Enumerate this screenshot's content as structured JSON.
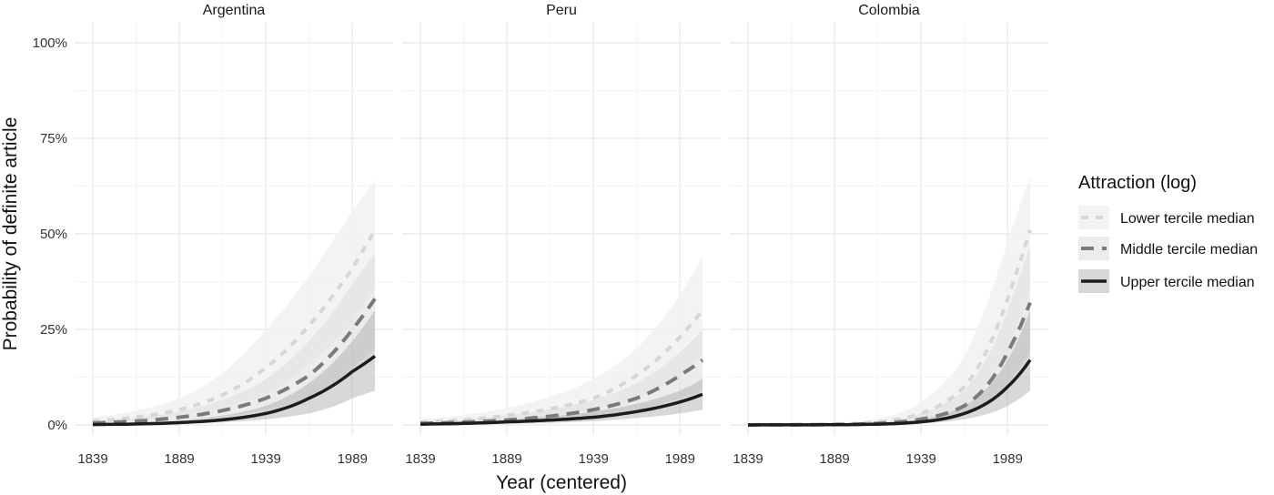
{
  "chart_data": {
    "type": "line",
    "xlabel": "Year (centered)",
    "ylabel": "Probability of definite article",
    "xlim": [
      1839,
      2002
    ],
    "ylim": [
      0,
      1
    ],
    "x_ticks": [
      1839,
      1889,
      1939,
      1989
    ],
    "x_tick_labels": [
      "1839",
      "1889",
      "1939",
      "1989"
    ],
    "y_ticks": [
      0,
      0.25,
      0.5,
      0.75,
      1
    ],
    "y_tick_labels": [
      "0%",
      "25%",
      "50%",
      "75%",
      "100%"
    ],
    "grid": true,
    "legend": {
      "title": "Attraction (log)",
      "position": "right",
      "entries": [
        "Lower tercile median",
        "Middle tercile median",
        "Upper tercile median"
      ]
    },
    "series_styles": [
      {
        "line_color": "#d6d6d6",
        "band_color": "#f2f2f2",
        "band_opacity": 0.9,
        "dash": "8 8",
        "width": 4
      },
      {
        "line_color": "#7a7a7a",
        "band_color": "#dcdcdc",
        "band_opacity": 0.55,
        "dash": "14 9",
        "width": 4
      },
      {
        "line_color": "#1c1c1c",
        "band_color": "#a8a8a8",
        "band_opacity": 0.45,
        "dash": "",
        "width": 3.5
      }
    ],
    "panels": [
      {
        "title": "Argentina",
        "series": [
          {
            "name": "Lower tercile median",
            "x": [
              1839,
              1889,
              1939,
              1964,
              1989,
              2002
            ],
            "y": [
              0.01,
              0.04,
              0.15,
              0.26,
              0.41,
              0.51
            ],
            "lower": [
              0.005,
              0.025,
              0.08,
              0.16,
              0.27,
              0.36
            ],
            "upper": [
              0.02,
              0.07,
              0.25,
              0.39,
              0.56,
              0.64
            ]
          },
          {
            "name": "Middle tercile median",
            "x": [
              1839,
              1889,
              1939,
              1964,
              1989,
              2002
            ],
            "y": [
              0.005,
              0.02,
              0.07,
              0.13,
              0.25,
              0.33
            ],
            "lower": [
              0.002,
              0.012,
              0.04,
              0.07,
              0.15,
              0.2
            ],
            "upper": [
              0.01,
              0.035,
              0.12,
              0.22,
              0.37,
              0.45
            ]
          },
          {
            "name": "Upper tercile median",
            "x": [
              1839,
              1889,
              1939,
              1964,
              1989,
              2002
            ],
            "y": [
              0.001,
              0.006,
              0.03,
              0.07,
              0.14,
              0.18
            ],
            "lower": [
              0,
              0.003,
              0.015,
              0.03,
              0.07,
              0.09
            ],
            "upper": [
              0.003,
              0.012,
              0.05,
              0.11,
              0.22,
              0.3
            ]
          }
        ]
      },
      {
        "title": "Peru",
        "series": [
          {
            "name": "Lower tercile median",
            "x": [
              1839,
              1889,
              1939,
              1964,
              1989,
              2002
            ],
            "y": [
              0.007,
              0.025,
              0.07,
              0.13,
              0.23,
              0.3
            ],
            "lower": [
              0.003,
              0.012,
              0.04,
              0.07,
              0.13,
              0.18
            ],
            "upper": [
              0.015,
              0.045,
              0.12,
              0.2,
              0.34,
              0.44
            ]
          },
          {
            "name": "Middle tercile median",
            "x": [
              1839,
              1889,
              1939,
              1964,
              1989,
              2002
            ],
            "y": [
              0.004,
              0.013,
              0.04,
              0.07,
              0.13,
              0.17
            ],
            "lower": [
              0.002,
              0.007,
              0.02,
              0.04,
              0.07,
              0.09
            ],
            "upper": [
              0.008,
              0.025,
              0.065,
              0.11,
              0.19,
              0.25
            ]
          },
          {
            "name": "Upper tercile median",
            "x": [
              1839,
              1889,
              1939,
              1964,
              1989,
              2002
            ],
            "y": [
              0.002,
              0.008,
              0.02,
              0.035,
              0.06,
              0.08
            ],
            "lower": [
              0.001,
              0.003,
              0.01,
              0.018,
              0.03,
              0.04
            ],
            "upper": [
              0.005,
              0.014,
              0.035,
              0.055,
              0.09,
              0.12
            ]
          }
        ]
      },
      {
        "title": "Colombia",
        "series": [
          {
            "name": "Lower tercile median",
            "x": [
              1839,
              1889,
              1939,
              1964,
              1989,
              2002
            ],
            "y": [
              0,
              0.002,
              0.03,
              0.1,
              0.33,
              0.51
            ],
            "lower": [
              0,
              0.001,
              0.015,
              0.05,
              0.2,
              0.35
            ],
            "upper": [
              0,
              0.004,
              0.06,
              0.18,
              0.48,
              0.65
            ]
          },
          {
            "name": "Middle tercile median",
            "x": [
              1839,
              1889,
              1939,
              1964,
              1989,
              2002
            ],
            "y": [
              0,
              0.001,
              0.015,
              0.05,
              0.19,
              0.32
            ],
            "lower": [
              0,
              0,
              0.008,
              0.025,
              0.11,
              0.19
            ],
            "upper": [
              0,
              0.002,
              0.03,
              0.09,
              0.3,
              0.47
            ]
          },
          {
            "name": "Upper tercile median",
            "x": [
              1839,
              1889,
              1939,
              1964,
              1989,
              2002
            ],
            "y": [
              0,
              0.0005,
              0.008,
              0.03,
              0.1,
              0.17
            ],
            "lower": [
              0,
              0,
              0.004,
              0.015,
              0.05,
              0.09
            ],
            "upper": [
              0,
              0.001,
              0.015,
              0.05,
              0.17,
              0.3
            ]
          }
        ]
      }
    ]
  }
}
